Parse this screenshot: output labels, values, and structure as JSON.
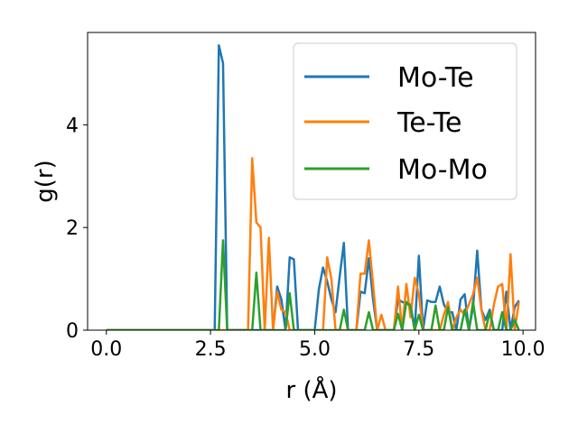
{
  "chart_data": {
    "type": "line",
    "title": "",
    "xlabel": "r (Å)",
    "ylabel": "g(r)",
    "xlim": [
      -0.45,
      10.3
    ],
    "ylim": [
      0,
      5.8
    ],
    "xticks": [
      0.0,
      2.5,
      5.0,
      7.5,
      10.0
    ],
    "xtick_labels": [
      "0.0",
      "2.5",
      "5.0",
      "7.5",
      "10.0"
    ],
    "yticks": [
      0,
      2,
      4
    ],
    "ytick_labels": [
      "0",
      "2",
      "4"
    ],
    "grid": false,
    "legend_position": "top-right",
    "series": [
      {
        "name": "Mo-Te",
        "color": "#1f77b4",
        "x": [
          0.0,
          2.6,
          2.7,
          2.8,
          2.9,
          3.0,
          4.0,
          4.1,
          4.2,
          4.3,
          4.4,
          4.5,
          4.6,
          5.0,
          5.1,
          5.2,
          5.3,
          5.4,
          5.5,
          5.6,
          5.7,
          5.8,
          5.9,
          6.0,
          6.1,
          6.2,
          6.3,
          6.4,
          6.5,
          6.6,
          6.7,
          6.8,
          6.9,
          7.0,
          7.1,
          7.2,
          7.3,
          7.4,
          7.5,
          7.6,
          7.7,
          7.8,
          7.9,
          8.0,
          8.1,
          8.2,
          8.3,
          8.4,
          8.5,
          8.6,
          8.7,
          8.8,
          8.9,
          9.0,
          9.1,
          9.2,
          9.3,
          9.4,
          9.5,
          9.6,
          9.7,
          9.8,
          9.9
        ],
        "y": [
          0.0,
          0.0,
          5.55,
          5.2,
          0.0,
          0.0,
          0.0,
          0.85,
          0.6,
          0.0,
          1.42,
          1.38,
          0.0,
          0.0,
          0.8,
          1.22,
          0.95,
          0.6,
          0.35,
          1.05,
          1.7,
          0.0,
          0.0,
          0.0,
          0.75,
          0.72,
          1.4,
          0.6,
          0.0,
          0.0,
          0.0,
          0.0,
          0.0,
          0.6,
          0.55,
          0.52,
          0.5,
          0.0,
          1.45,
          0.0,
          0.58,
          0.55,
          0.55,
          0.85,
          0.5,
          0.35,
          0.35,
          0.0,
          0.6,
          0.7,
          0.0,
          0.45,
          1.55,
          0.4,
          0.2,
          0.4,
          0.0,
          0.0,
          0.0,
          0.75,
          0.0,
          0.45,
          0.58
        ]
      },
      {
        "name": "Te-Te",
        "color": "#ff7f0e",
        "x": [
          0.0,
          3.4,
          3.5,
          3.6,
          3.7,
          3.8,
          3.9,
          4.0,
          4.1,
          4.2,
          4.3,
          4.4,
          4.5,
          4.6,
          4.7,
          4.8,
          4.9,
          5.0,
          5.1,
          5.2,
          5.3,
          5.4,
          5.5,
          5.6,
          5.7,
          5.8,
          5.9,
          6.0,
          6.1,
          6.2,
          6.3,
          6.4,
          6.5,
          6.6,
          6.7,
          6.8,
          6.9,
          7.0,
          7.1,
          7.2,
          7.3,
          7.4,
          7.5,
          7.6,
          7.7,
          7.8,
          7.9,
          8.0,
          8.1,
          8.2,
          8.3,
          8.4,
          8.5,
          8.6,
          8.7,
          8.8,
          8.9,
          9.0,
          9.1,
          9.2,
          9.3,
          9.4,
          9.5,
          9.6,
          9.7,
          9.8,
          9.9
        ],
        "y": [
          0.0,
          0.0,
          3.35,
          2.1,
          2.0,
          0.0,
          1.8,
          0.0,
          0.75,
          0.4,
          0.35,
          0.0,
          0.0,
          0.0,
          0.0,
          0.0,
          0.0,
          0.0,
          0.0,
          0.0,
          1.42,
          1.0,
          0.0,
          0.0,
          0.0,
          0.0,
          0.0,
          0.0,
          1.1,
          1.1,
          1.75,
          0.9,
          0.0,
          0.3,
          0.0,
          0.0,
          0.0,
          0.85,
          0.0,
          0.9,
          0.25,
          1.02,
          0.7,
          0.0,
          0.0,
          0.0,
          0.0,
          0.0,
          0.3,
          0.55,
          0.0,
          0.25,
          0.4,
          0.3,
          0.5,
          0.7,
          1.02,
          0.4,
          0.0,
          0.0,
          0.5,
          0.85,
          0.9,
          0.0,
          1.48,
          0.0,
          0.55
        ]
      },
      {
        "name": "Mo-Mo",
        "color": "#2ca02c",
        "x": [
          0.0,
          2.7,
          2.8,
          2.9,
          3.0,
          3.5,
          3.6,
          3.7,
          4.3,
          4.4,
          4.5,
          4.6,
          5.5,
          5.6,
          5.7,
          5.8,
          5.9,
          6.2,
          6.3,
          6.4,
          6.5,
          6.6,
          6.9,
          7.0,
          7.1,
          7.2,
          7.3,
          7.4,
          7.5,
          7.6,
          7.7,
          7.8,
          7.9,
          8.0,
          8.1,
          8.2,
          8.3,
          8.4,
          8.5,
          8.6,
          8.7,
          8.8,
          8.9,
          9.0,
          9.1,
          9.2,
          9.3,
          9.4,
          9.5,
          9.6,
          9.7,
          9.8,
          9.9
        ],
        "y": [
          0.0,
          0.0,
          1.75,
          0.0,
          0.0,
          0.0,
          1.12,
          0.0,
          0.0,
          0.72,
          0.0,
          0.0,
          0.0,
          0.0,
          0.4,
          0.0,
          0.0,
          0.0,
          0.35,
          0.0,
          0.0,
          0.0,
          0.0,
          0.32,
          0.0,
          0.55,
          0.45,
          0.0,
          0.3,
          0.0,
          0.0,
          0.0,
          0.48,
          0.0,
          0.0,
          0.45,
          0.0,
          0.0,
          0.0,
          0.4,
          0.0,
          0.55,
          0.0,
          0.0,
          0.0,
          0.35,
          0.0,
          0.0,
          0.35,
          0.0,
          0.0,
          0.2,
          0.0
        ]
      }
    ]
  }
}
